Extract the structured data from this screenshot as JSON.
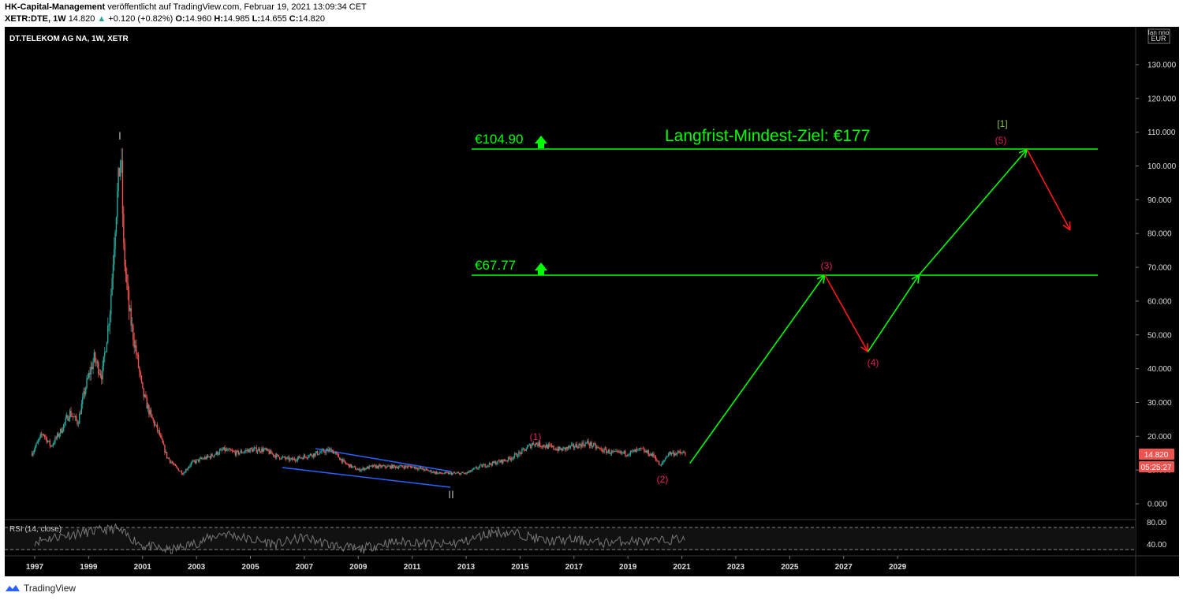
{
  "header": {
    "author": "HK-Capital-Management",
    "published_text": "veröffentlicht auf TradingView.com, Februar 19, 2021 13:09:34 CET",
    "ticker_interval": "XETR:DTE, 1W",
    "last_price": "14.820",
    "change": "+0.120 (+0.82%)",
    "open_label": "O:",
    "open": "14.960",
    "high_label": "H:",
    "high": "14.985",
    "low_label": "L:",
    "low": "14.655",
    "close_label": "C:",
    "close": "14.820"
  },
  "chart_title": "DT.TELEKOM AG NA, 1W, XETR",
  "currency_box": {
    "line1": "Ian nno",
    "line2": "EUR"
  },
  "price_badge": "14.820",
  "countdown_badge": "05:25:27",
  "annotations": {
    "target_text": "Langfrist-Mindest-Ziel: €177",
    "level_high_label": "€104.90",
    "level_low_label": "€67.77",
    "wave_I": "I",
    "wave_II": "II",
    "wave_1": "(1)",
    "wave_2": "(2)",
    "wave_3": "(3)",
    "wave_4": "(4)",
    "wave_5": "(5)",
    "wave_big_1": "[1]"
  },
  "rsi": {
    "label": "RSI (14, close)",
    "upper": "80.00",
    "lower": "40.00"
  },
  "footer": {
    "brand": "TradingView"
  },
  "colors": {
    "background": "#000000",
    "price_up": "#26a69a",
    "price_down": "#ef5350",
    "level_lines": "#00ff00",
    "projection_up": "#00ff00",
    "projection_down": "#ff1a1a",
    "wave_labels": "#e91e63",
    "channel": "#2962ff",
    "badge": "#ef5350"
  },
  "chart_data": {
    "type": "line",
    "title": "DT.TELEKOM AG NA, 1W, XETR",
    "y_axis_ticks": [
      "0.000",
      "10.000",
      "20.000",
      "30.000",
      "40.000",
      "50.000",
      "60.000",
      "70.000",
      "80.000",
      "90.000",
      "100.000",
      "110.000",
      "120.000",
      "130.000"
    ],
    "x_axis_ticks": [
      "1997",
      "1999",
      "2001",
      "2003",
      "2005",
      "2007",
      "2009",
      "2011",
      "2013",
      "2015",
      "2017",
      "2019",
      "2021",
      "2023",
      "2025",
      "2027",
      "2029"
    ],
    "ylim": [
      0,
      140
    ],
    "series": [
      {
        "x": [
          1996.9,
          1997.3,
          1997.6,
          1998.0,
          1998.3,
          1998.6,
          1998.9,
          1999.2,
          1999.5,
          1999.8,
          2000.0,
          2000.2,
          2000.3,
          2000.5,
          2000.8,
          2001.0,
          2001.3,
          2001.6,
          2001.9,
          2002.2,
          2002.5,
          2002.8,
          2003.1,
          2003.5,
          2004.0,
          2004.5,
          2005.0,
          2005.5,
          2006.0,
          2006.5,
          2007.0,
          2007.5,
          2008.0,
          2008.5,
          2009.0,
          2009.5,
          2010.0,
          2010.5,
          2011.0,
          2011.5,
          2012.0,
          2012.5,
          2013.0,
          2013.5,
          2014.0,
          2014.5,
          2015.0,
          2015.5,
          2016.0,
          2016.5,
          2017.0,
          2017.5,
          2018.0,
          2018.5,
          2019.0,
          2019.5,
          2020.0,
          2020.2,
          2020.5,
          2021.0,
          2021.13
        ],
        "y": [
          15,
          21,
          17,
          22,
          27,
          24,
          35,
          43,
          38,
          58,
          85,
          104,
          75,
          57,
          43,
          33,
          26,
          21,
          14,
          11,
          9,
          12,
          13,
          14,
          16,
          15,
          16,
          16,
          14,
          13,
          14,
          15,
          16,
          12,
          10,
          11,
          11,
          11,
          11,
          10,
          9,
          9,
          9,
          11,
          12,
          13,
          15,
          18,
          17,
          16,
          17,
          18,
          16,
          15,
          15,
          16,
          14,
          11,
          15,
          15,
          14.82
        ]
      }
    ],
    "projection": {
      "x": [
        2021.3,
        2026.3,
        2027.9,
        2029.8,
        2033.8,
        2035.4
      ],
      "y": [
        12,
        67.77,
        45,
        67.77,
        104.9,
        81
      ]
    },
    "levels": [
      104.9,
      67.77
    ],
    "rsi": {
      "x": [
        1997,
        1998,
        1999,
        2000,
        2001,
        2002,
        2003,
        2004,
        2005,
        2006,
        2007,
        2008,
        2009,
        2010,
        2011,
        2012,
        2013,
        2014,
        2015,
        2016,
        2017,
        2018,
        2019,
        2020,
        2021
      ],
      "y": [
        55,
        65,
        72,
        78,
        48,
        38,
        52,
        70,
        58,
        50,
        62,
        48,
        40,
        52,
        54,
        48,
        55,
        72,
        68,
        55,
        58,
        52,
        56,
        54,
        60
      ]
    }
  }
}
